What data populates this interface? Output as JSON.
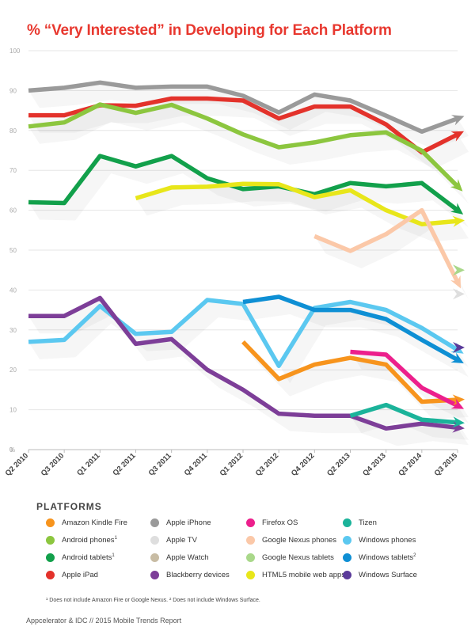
{
  "chart_data": {
    "type": "line",
    "title": "% “Very Interested” in Developing for Each Platform",
    "ylabel": "%",
    "ylim": [
      0,
      100
    ],
    "yticks": [
      "0",
      "10",
      "20",
      "30",
      "40",
      "50",
      "60",
      "70",
      "80",
      "90",
      "100"
    ],
    "categories": [
      "Q2 2010",
      "Q3 2010",
      "Q1 2011",
      "Q2 2011",
      "Q3 2011",
      "Q4 2011",
      "Q1 2012",
      "Q3 2012",
      "Q4 2012",
      "Q2 2013",
      "Q4 2013",
      "Q3 2014",
      "Q3 2015"
    ],
    "series": [
      {
        "name": "Apple iPhone",
        "color": "#9a9a9a",
        "values": [
          90,
          90.7,
          92,
          90.7,
          91,
          91,
          88.7,
          84.5,
          89,
          87.5,
          83.7,
          79.7,
          83
        ]
      },
      {
        "name": "Apple iPad",
        "color": "#e3322b",
        "values": [
          83.8,
          83.8,
          86.3,
          86.2,
          88,
          88,
          87.5,
          83,
          86,
          86,
          81.5,
          74.5,
          79
        ]
      },
      {
        "name": "Android phones",
        "color": "#8cc63f",
        "values": [
          81,
          82,
          86.5,
          84.4,
          86.4,
          83,
          79,
          75.8,
          77,
          78.8,
          79.5,
          74.9,
          66
        ]
      },
      {
        "name": "Android tablets",
        "color": "#12a04b",
        "values": [
          62,
          61.8,
          73.6,
          71,
          73.6,
          68,
          65.3,
          66,
          64,
          66.8,
          66,
          66.8,
          60
        ]
      },
      {
        "name": "HTML5 mobile web apps",
        "color": "#e8e61a",
        "values": [
          null,
          null,
          null,
          63,
          65.7,
          65.9,
          66.6,
          66.5,
          63.3,
          65,
          60,
          56.5,
          57.3
        ]
      },
      {
        "name": "Google Nexus phones",
        "color": "#fbc8a8",
        "values": [
          null,
          null,
          null,
          null,
          null,
          null,
          null,
          null,
          53.5,
          49.8,
          54,
          60,
          42
        ]
      },
      {
        "name": "Google Nexus tablets",
        "color": "#a9d88a",
        "values": [
          null,
          null,
          null,
          null,
          null,
          null,
          null,
          null,
          null,
          null,
          null,
          null,
          45
        ]
      },
      {
        "name": "Apple TV",
        "color": "#dedede",
        "values": [
          null,
          null,
          null,
          null,
          null,
          null,
          null,
          null,
          null,
          null,
          null,
          null,
          39
        ]
      },
      {
        "name": "Windows phones",
        "color": "#5bc8f0",
        "values": [
          27,
          27.5,
          36,
          29,
          29.5,
          37.5,
          36.5,
          21,
          35.5,
          37,
          35,
          30.5,
          25
        ]
      },
      {
        "name": "Windows tablets",
        "color": "#0e8fd4",
        "values": [
          null,
          null,
          null,
          null,
          null,
          null,
          37,
          38.3,
          35,
          35,
          32.7,
          27.5,
          22.5
        ]
      },
      {
        "name": "Blackberry devices",
        "color": "#7d3e98",
        "values": [
          33.5,
          33.5,
          38,
          26.5,
          27.7,
          20,
          15,
          9,
          8.5,
          8.5,
          5.3,
          6.5,
          5.5
        ]
      },
      {
        "name": "Windows Surface",
        "color": "#5a3a9a",
        "values": [
          null,
          null,
          null,
          null,
          null,
          null,
          null,
          null,
          null,
          null,
          null,
          null,
          25.6
        ]
      },
      {
        "name": "Amazon Kindle Fire",
        "color": "#f7941d",
        "values": [
          null,
          null,
          null,
          null,
          null,
          null,
          27,
          17.7,
          21.3,
          23,
          21.3,
          12,
          12.5
        ]
      },
      {
        "name": "Firefox OS",
        "color": "#ec1f8c",
        "values": [
          null,
          null,
          null,
          null,
          null,
          null,
          null,
          null,
          null,
          24.5,
          23.8,
          15.5,
          11
        ]
      },
      {
        "name": "Tizen",
        "color": "#1bb39a",
        "values": [
          null,
          null,
          null,
          null,
          null,
          null,
          null,
          null,
          null,
          8.5,
          11.2,
          7.5,
          6.8
        ]
      },
      {
        "name": "Apple Watch",
        "color": "#c8bca4",
        "values": [
          null,
          null,
          null,
          null,
          null,
          null,
          null,
          null,
          null,
          null,
          null,
          null,
          null
        ]
      }
    ]
  },
  "legend": {
    "title": "PLATFORMS",
    "items": [
      {
        "label": "Amazon Kindle Fire",
        "sup": "",
        "color": "#f7941d"
      },
      {
        "label": "Android phones",
        "sup": "1",
        "color": "#8cc63f"
      },
      {
        "label": "Android tablets",
        "sup": "1",
        "color": "#12a04b"
      },
      {
        "label": "Apple iPad",
        "sup": "",
        "color": "#e3322b"
      },
      {
        "label": "Apple iPhone",
        "sup": "",
        "color": "#9a9a9a"
      },
      {
        "label": "Apple TV",
        "sup": "",
        "color": "#dedede"
      },
      {
        "label": "Apple Watch",
        "sup": "",
        "color": "#c8bca4"
      },
      {
        "label": "Blackberry devices",
        "sup": "",
        "color": "#7d3e98"
      },
      {
        "label": "Firefox OS",
        "sup": "",
        "color": "#ec1f8c"
      },
      {
        "label": "Google Nexus phones",
        "sup": "",
        "color": "#fbc8a8"
      },
      {
        "label": "Google Nexus tablets",
        "sup": "",
        "color": "#a9d88a"
      },
      {
        "label": "HTML5 mobile web apps",
        "sup": "",
        "color": "#e8e61a"
      },
      {
        "label": "Tizen",
        "sup": "",
        "color": "#1bb39a"
      },
      {
        "label": "Windows phones",
        "sup": "",
        "color": "#5bc8f0"
      },
      {
        "label": "Windows tablets",
        "sup": "2",
        "color": "#0e8fd4"
      },
      {
        "label": "Windows Surface",
        "sup": "",
        "color": "#5a3a9a"
      }
    ]
  },
  "footnote": "¹ Does not include Amazon Fire or Google Nexus. ² Does not include Windows Surface.",
  "source": "Appcelerator & IDC // 2015 Mobile Trends Report"
}
